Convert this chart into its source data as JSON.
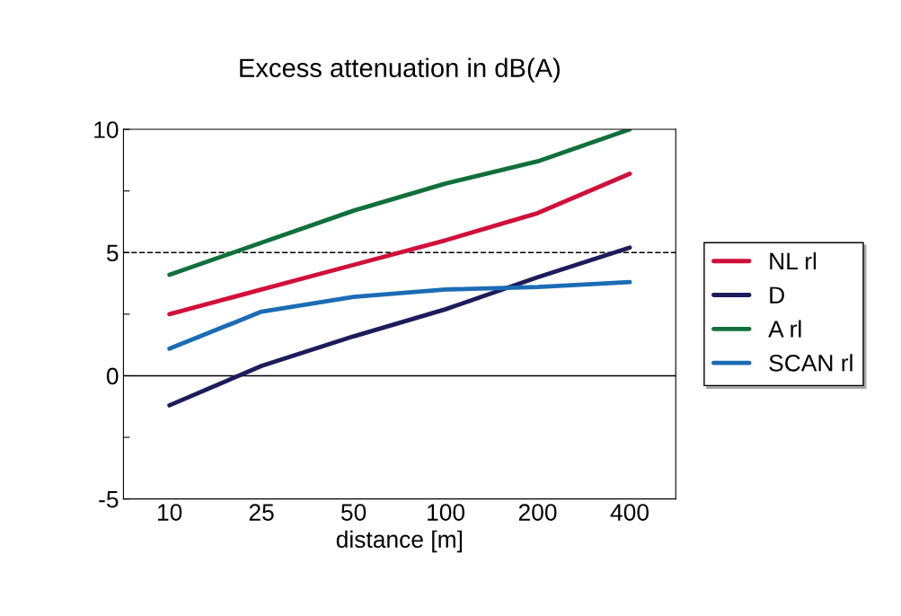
{
  "chart_data": {
    "type": "line",
    "title": "Excess attenuation in dB(A)",
    "xlabel": "distance [m]",
    "categories": [
      "10",
      "25",
      "50",
      "100",
      "200",
      "400"
    ],
    "series": [
      {
        "name": "NL rl",
        "color": "#d0103a",
        "values": [
          2.5,
          3.5,
          4.5,
          5.5,
          6.6,
          8.2
        ]
      },
      {
        "name": "D",
        "color": "#1c1c5c",
        "values": [
          -1.2,
          0.4,
          1.6,
          2.7,
          4.0,
          5.2
        ]
      },
      {
        "name": "A rl",
        "color": "#10703c",
        "values": [
          4.1,
          5.4,
          6.7,
          7.8,
          8.7,
          10
        ]
      },
      {
        "name": "SCAN rl",
        "color": "#1a6cb4",
        "values": [
          1.1,
          2.6,
          3.2,
          3.5,
          3.6,
          3.8
        ]
      }
    ],
    "ylim": [
      -5,
      10
    ],
    "yticks": [
      -5,
      {
        "value": -2.5,
        "label": null
      },
      0,
      {
        "value": 2.5,
        "label": null
      },
      5,
      {
        "value": 7.5,
        "label": null
      },
      10
    ],
    "ref_lines": [
      {
        "axis": "y",
        "value": 5,
        "color": "#000000",
        "line_style": "dashed"
      },
      {
        "axis": "y",
        "value": 0,
        "color": "#000000",
        "line_style": "solid"
      }
    ],
    "legend": "right",
    "grid": false,
    "marker": "none",
    "line_style": "solid"
  }
}
